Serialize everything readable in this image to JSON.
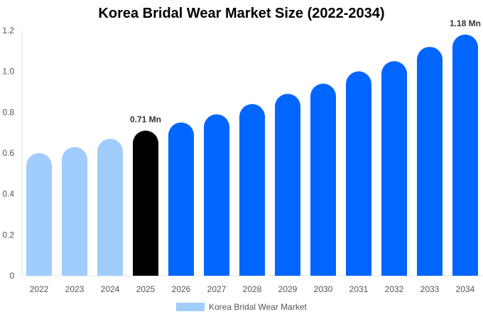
{
  "chart_data": {
    "type": "bar",
    "title": "Korea Bridal Wear Market Size (2022-2034)",
    "categories": [
      "2022",
      "2023",
      "2024",
      "2025",
      "2026",
      "2027",
      "2028",
      "2029",
      "2030",
      "2031",
      "2032",
      "2033",
      "2034"
    ],
    "series": [
      {
        "name": "Korea Bridal Wear Market",
        "values": [
          0.6,
          0.63,
          0.67,
          0.71,
          0.75,
          0.79,
          0.84,
          0.89,
          0.94,
          1.0,
          1.05,
          1.12,
          1.18
        ]
      }
    ],
    "data_labels": {
      "2025": "0.71 Mn",
      "2034": "1.18 Mn"
    },
    "ylim": [
      0,
      1.2
    ],
    "yticks": [
      "0",
      "0.2",
      "0.4",
      "0.6",
      "0.8",
      "1.0",
      "1.2"
    ],
    "xlabel": "",
    "ylabel": "",
    "grid": false,
    "legend": "bottom",
    "colors": {
      "historical": "#a0cdfc",
      "current": "#000000",
      "forecast": "#0066ff"
    }
  }
}
